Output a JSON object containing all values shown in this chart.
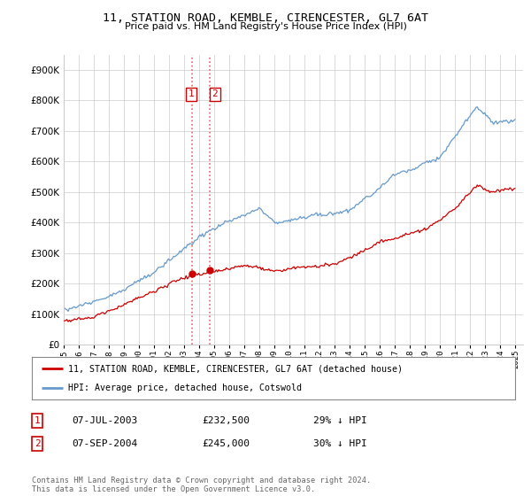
{
  "title": "11, STATION ROAD, KEMBLE, CIRENCESTER, GL7 6AT",
  "subtitle": "Price paid vs. HM Land Registry's House Price Index (HPI)",
  "legend_label_red": "11, STATION ROAD, KEMBLE, CIRENCESTER, GL7 6AT (detached house)",
  "legend_label_blue": "HPI: Average price, detached house, Cotswold",
  "table_rows": [
    {
      "num": "1",
      "date": "07-JUL-2003",
      "price": "£232,500",
      "pct": "29% ↓ HPI"
    },
    {
      "num": "2",
      "date": "07-SEP-2004",
      "price": "£245,000",
      "pct": "30% ↓ HPI"
    }
  ],
  "footnote": "Contains HM Land Registry data © Crown copyright and database right 2024.\nThis data is licensed under the Open Government Licence v3.0.",
  "ylim": [
    0,
    950000
  ],
  "yticks": [
    0,
    100000,
    200000,
    300000,
    400000,
    500000,
    600000,
    700000,
    800000,
    900000
  ],
  "background_color": "#ffffff",
  "grid_color": "#cccccc",
  "red_color": "#cc0000",
  "blue_color": "#6699cc",
  "sale_vline_color": "#dd6666",
  "sale1_x": 2003.52,
  "sale2_x": 2004.69,
  "sale1_y": 232500,
  "sale2_y": 245000,
  "xmin": 1995.0,
  "xmax": 2025.5
}
